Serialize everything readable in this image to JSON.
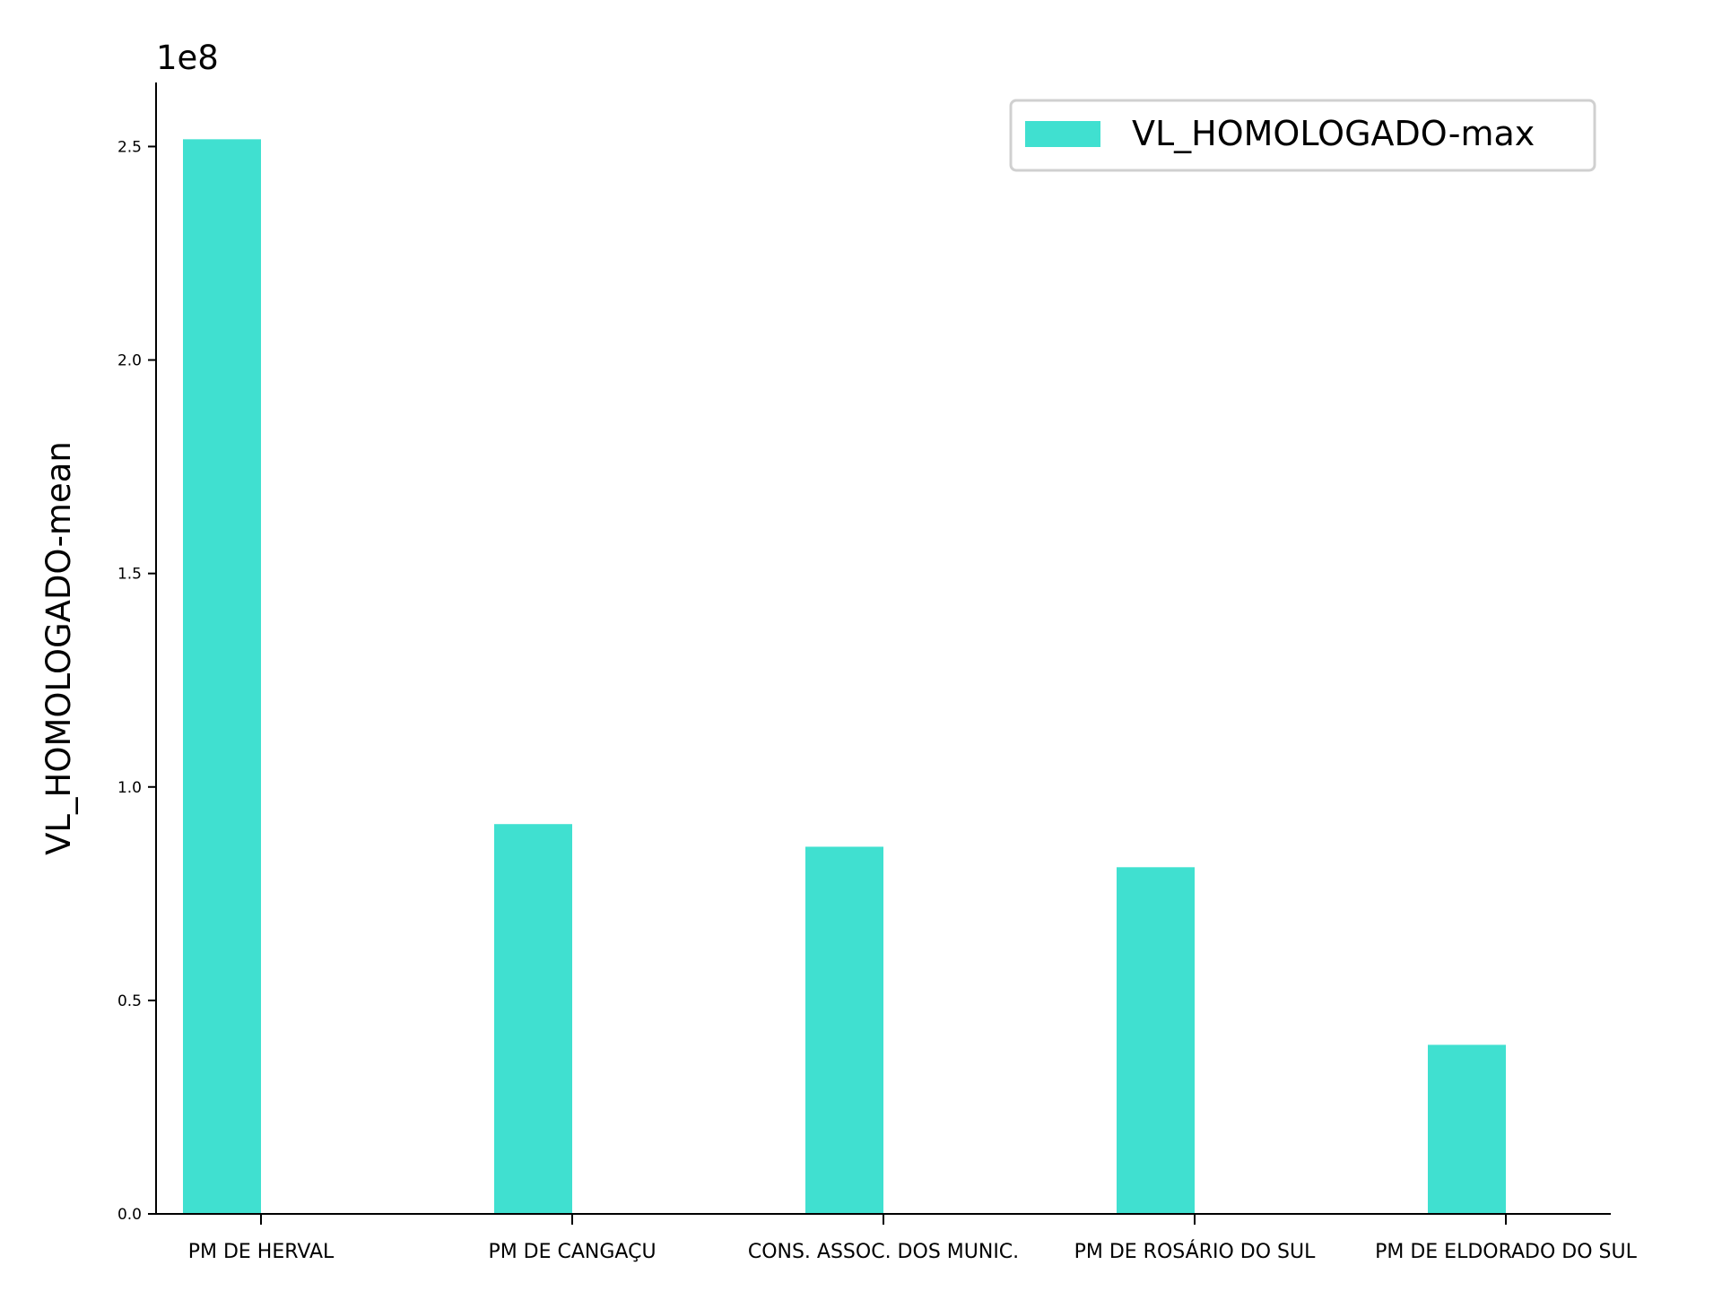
{
  "chart_data": {
    "type": "bar",
    "categories": [
      "PM DE HERVAL",
      "PM DE CANGAÇU",
      "CONS. ASSOC. DOS MUNIC.",
      "PM DE ROSÁRIO DO SUL",
      "PM DE ELDORADO DO SUL"
    ],
    "series": [
      {
        "name": "VL_HOMOLOGADO-max",
        "values": [
          251700000,
          91300000,
          86000000,
          81200000,
          39600000
        ],
        "color": "#40e0d0"
      }
    ],
    "xlabel": "",
    "ylabel": "VL_HOMOLOGADO-mean",
    "ylim": [
      0,
      265000000
    ],
    "yticks": [
      0,
      50000000,
      100000000,
      150000000,
      200000000,
      250000000
    ],
    "ytick_labels": [
      "0.0",
      "0.5",
      "1.0",
      "1.5",
      "2.0",
      "2.5"
    ],
    "offset_text": "1e8",
    "grid": false,
    "legend_position": "top-right"
  }
}
